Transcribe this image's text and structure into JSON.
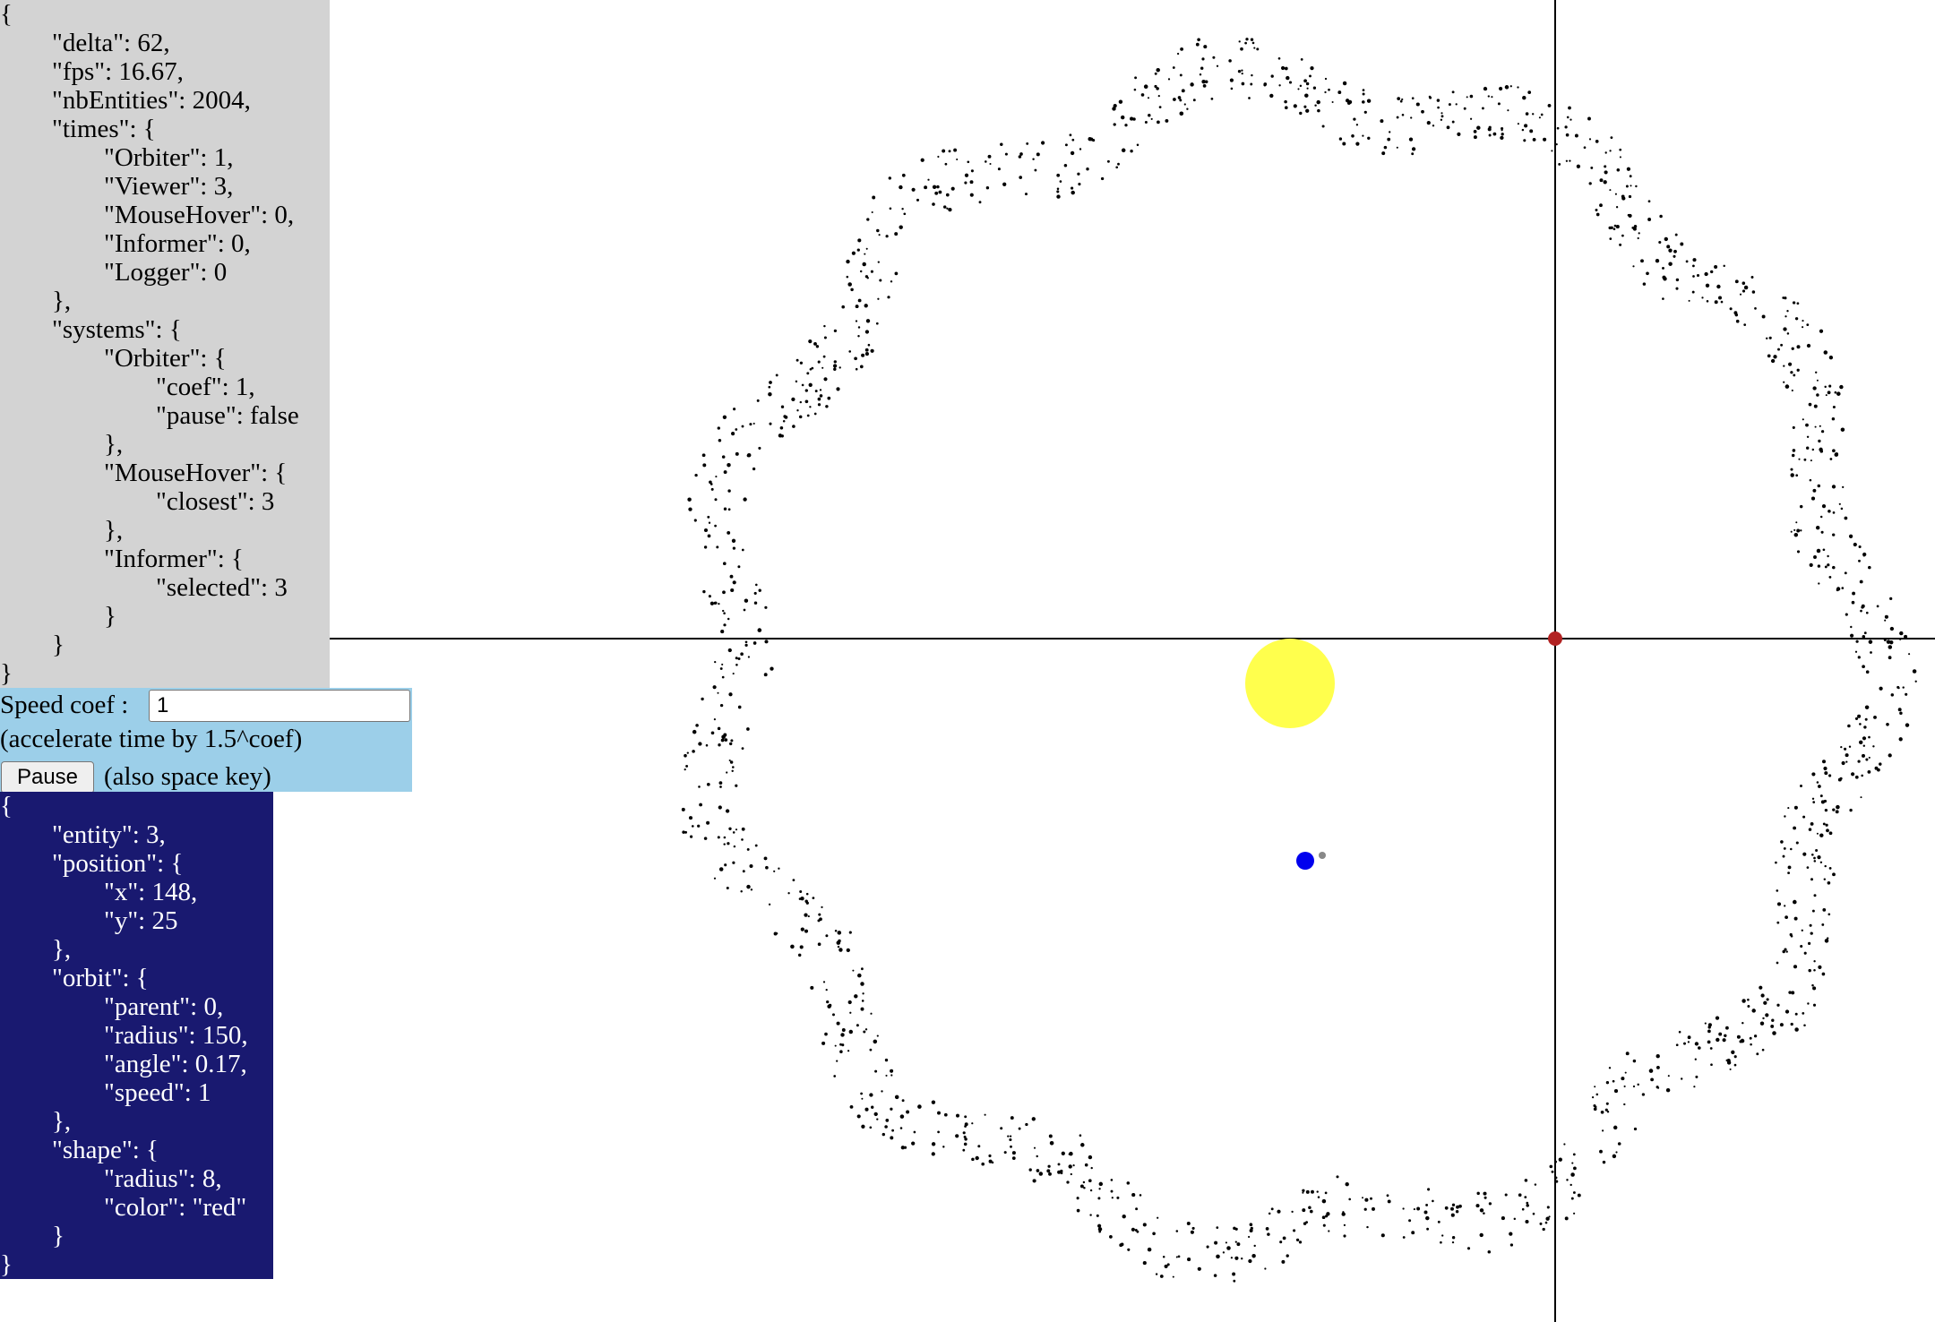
{
  "logger": {
    "text": "{\n\t\"delta\": 62,\n\t\"fps\": 16.67,\n\t\"nbEntities\": 2004,\n\t\"times\": {\n\t\t\"Orbiter\": 1,\n\t\t\"Viewer\": 3,\n\t\t\"MouseHover\": 0,\n\t\t\"Informer\": 0,\n\t\t\"Logger\": 0\n\t},\n\t\"systems\": {\n\t\t\"Orbiter\": {\n\t\t\t\"coef\": 1,\n\t\t\t\"pause\": false\n\t\t},\n\t\t\"MouseHover\": {\n\t\t\t\"closest\": 3\n\t\t},\n\t\t\"Informer\": {\n\t\t\t\"selected\": 3\n\t\t}\n\t}\n}"
  },
  "controls": {
    "speed_label": "Speed coef :",
    "speed_value": "1",
    "accel_note": "(accelerate time by 1.5^coef)",
    "pause_label": "Pause",
    "pause_hint": "(also space key)"
  },
  "informer": {
    "text": "{\n\t\"entity\": 3,\n\t\"position\": {\n\t\t\"x\": 148,\n\t\t\"y\": 25\n\t},\n\t\"orbit\": {\n\t\t\"parent\": 0,\n\t\t\"radius\": 150,\n\t\t\"angle\": 0.17,\n\t\t\"speed\": 1\n\t},\n\t\"shape\": {\n\t\t\"radius\": 8,\n\t\t\"color\": \"red\"\n\t}\n}"
  },
  "scene": {
    "sun_color": "#ffff4d",
    "planet_color": "#0000ee",
    "moon_color": "#888888",
    "selected_color": "#b22222",
    "asteroid_color": "#000000",
    "crosshair_color": "#000000"
  }
}
